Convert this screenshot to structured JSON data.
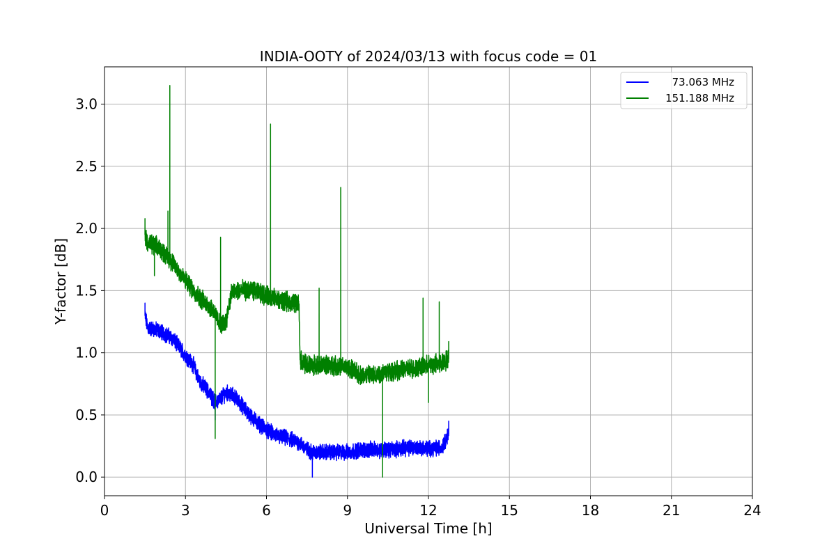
{
  "chart_data": {
    "type": "line",
    "title": "INDIA-OOTY of 2024/03/13 with focus code = 01",
    "xlabel": "Universal Time [h]",
    "ylabel": "Y-factor [dB]",
    "xlim": [
      0,
      24
    ],
    "ylim": [
      -0.15,
      3.3
    ],
    "xticks": [
      0,
      3,
      6,
      9,
      12,
      15,
      18,
      21,
      24
    ],
    "xtick_labels": [
      "0",
      "3",
      "6",
      "9",
      "12",
      "15",
      "18",
      "21",
      "24"
    ],
    "yticks": [
      0.0,
      0.5,
      1.0,
      1.5,
      2.0,
      2.5,
      3.0
    ],
    "ytick_labels": [
      "0.0",
      "0.5",
      "1.0",
      "1.5",
      "2.0",
      "2.5",
      "3.0"
    ],
    "grid": true,
    "legend_position": "top-right",
    "series": [
      {
        "name": "73.063 MHz",
        "color": "#0000ff",
        "x": [
          1.5,
          1.6,
          2.0,
          2.5,
          3.0,
          3.3,
          3.5,
          3.8,
          4.1,
          4.3,
          4.5,
          4.8,
          5.0,
          5.3,
          5.6,
          6.0,
          6.4,
          6.8,
          7.2,
          7.5,
          7.7,
          8.0,
          8.5,
          9.0,
          9.5,
          10.0,
          10.5,
          11.0,
          11.5,
          12.0,
          12.5,
          12.75
        ],
        "y": [
          1.3,
          1.2,
          1.18,
          1.12,
          0.98,
          0.9,
          0.78,
          0.7,
          0.6,
          0.63,
          0.68,
          0.65,
          0.6,
          0.52,
          0.45,
          0.38,
          0.33,
          0.31,
          0.28,
          0.22,
          0.2,
          0.2,
          0.2,
          0.2,
          0.22,
          0.22,
          0.22,
          0.23,
          0.24,
          0.23,
          0.24,
          0.35
        ],
        "noise": 0.05,
        "spikes": [
          {
            "x": 1.5,
            "y": 1.4
          },
          {
            "x": 4.1,
            "y": 0.46
          },
          {
            "x": 7.7,
            "y": 0.0
          },
          {
            "x": 12.75,
            "y": 0.45
          }
        ]
      },
      {
        "name": "151.188 MHz",
        "color": "#008000",
        "x": [
          1.5,
          1.6,
          2.0,
          2.5,
          3.0,
          3.5,
          4.0,
          4.3,
          4.5,
          4.7,
          5.0,
          5.5,
          6.0,
          6.5,
          7.0,
          7.2,
          7.25,
          7.5,
          8.0,
          8.5,
          9.0,
          9.5,
          10.0,
          10.5,
          11.0,
          11.5,
          12.0,
          12.5,
          12.75
        ],
        "y": [
          1.95,
          1.88,
          1.85,
          1.73,
          1.58,
          1.45,
          1.35,
          1.22,
          1.25,
          1.48,
          1.5,
          1.5,
          1.46,
          1.42,
          1.4,
          1.4,
          0.95,
          0.9,
          0.9,
          0.9,
          0.88,
          0.82,
          0.82,
          0.85,
          0.86,
          0.88,
          0.9,
          0.92,
          0.95
        ],
        "noise": 0.06,
        "spikes": [
          {
            "x": 1.5,
            "y": 2.08
          },
          {
            "x": 1.85,
            "y": 1.62
          },
          {
            "x": 2.35,
            "y": 2.14
          },
          {
            "x": 2.42,
            "y": 3.15
          },
          {
            "x": 4.1,
            "y": 0.31
          },
          {
            "x": 4.3,
            "y": 1.93
          },
          {
            "x": 6.15,
            "y": 2.84
          },
          {
            "x": 7.95,
            "y": 1.52
          },
          {
            "x": 8.75,
            "y": 2.33
          },
          {
            "x": 10.3,
            "y": 0.0
          },
          {
            "x": 11.8,
            "y": 1.44
          },
          {
            "x": 12.0,
            "y": 0.6
          },
          {
            "x": 12.4,
            "y": 1.41
          },
          {
            "x": 12.75,
            "y": 1.09
          }
        ]
      }
    ]
  }
}
